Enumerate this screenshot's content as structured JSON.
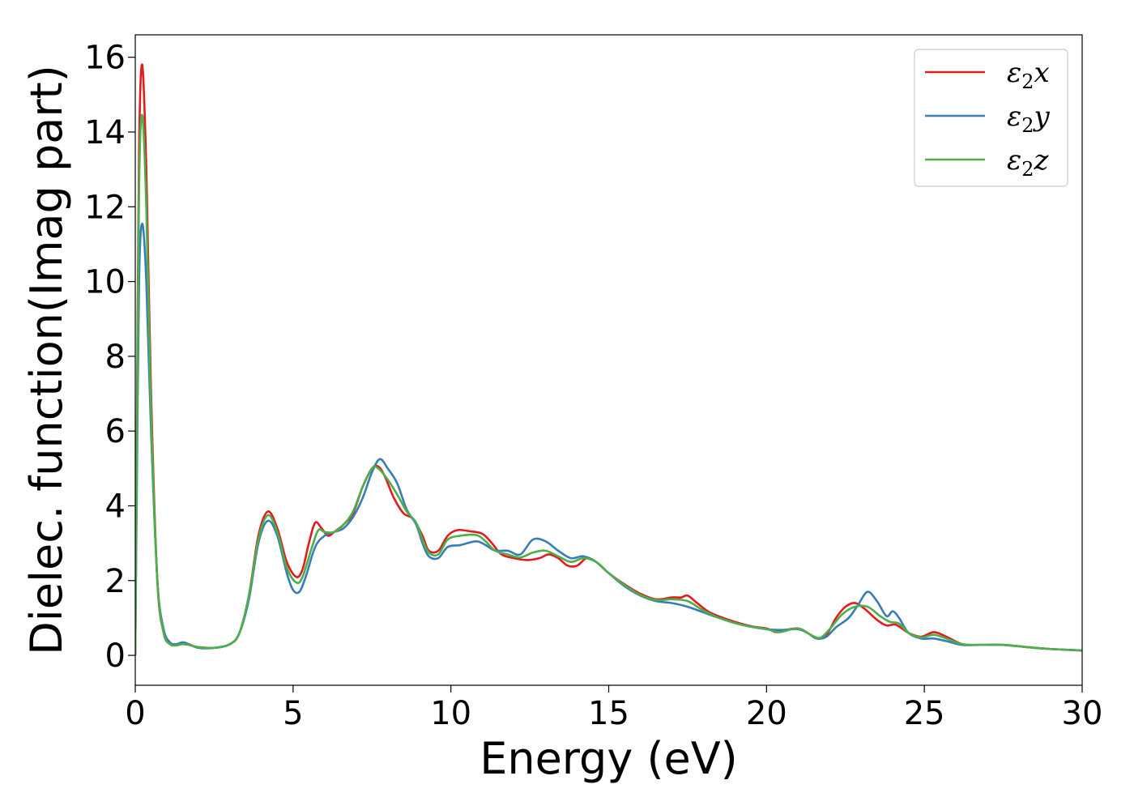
{
  "chart_data": {
    "type": "line",
    "title": "",
    "xlabel": "Energy (eV)",
    "ylabel": "Dielec. function(Imag part)",
    "xlim": [
      0,
      30
    ],
    "ylim": [
      -0.8,
      16.6
    ],
    "xticks": [
      0,
      5,
      10,
      15,
      20,
      25,
      30
    ],
    "yticks": [
      0,
      2,
      4,
      6,
      8,
      10,
      12,
      14,
      16
    ],
    "grid": false,
    "legend_position": "top-right",
    "series": [
      {
        "name": "ε₂x",
        "legend_main": "ε",
        "legend_sub": "2",
        "legend_suffix": "x",
        "color": "#e41a1c",
        "points": [
          [
            0,
            0
          ],
          [
            0.05,
            6.0
          ],
          [
            0.12,
            13.5
          ],
          [
            0.22,
            15.8
          ],
          [
            0.35,
            13.0
          ],
          [
            0.5,
            7.0
          ],
          [
            0.7,
            2.0
          ],
          [
            0.9,
            0.6
          ],
          [
            1.1,
            0.3
          ],
          [
            1.3,
            0.27
          ],
          [
            1.5,
            0.3
          ],
          [
            1.7,
            0.28
          ],
          [
            2.0,
            0.22
          ],
          [
            2.5,
            0.2
          ],
          [
            3.0,
            0.3
          ],
          [
            3.3,
            0.6
          ],
          [
            3.6,
            1.6
          ],
          [
            3.9,
            3.2
          ],
          [
            4.2,
            3.85
          ],
          [
            4.5,
            3.4
          ],
          [
            4.8,
            2.5
          ],
          [
            5.1,
            2.1
          ],
          [
            5.3,
            2.3
          ],
          [
            5.5,
            3.0
          ],
          [
            5.7,
            3.55
          ],
          [
            5.9,
            3.4
          ],
          [
            6.1,
            3.2
          ],
          [
            6.3,
            3.3
          ],
          [
            6.6,
            3.5
          ],
          [
            6.9,
            3.8
          ],
          [
            7.2,
            4.5
          ],
          [
            7.5,
            5.0
          ],
          [
            7.7,
            5.05
          ],
          [
            7.9,
            4.8
          ],
          [
            8.2,
            4.2
          ],
          [
            8.5,
            3.8
          ],
          [
            8.8,
            3.65
          ],
          [
            9.1,
            3.2
          ],
          [
            9.3,
            2.8
          ],
          [
            9.6,
            2.8
          ],
          [
            9.9,
            3.2
          ],
          [
            10.2,
            3.35
          ],
          [
            10.6,
            3.32
          ],
          [
            11.0,
            3.25
          ],
          [
            11.3,
            3.0
          ],
          [
            11.6,
            2.7
          ],
          [
            12.0,
            2.6
          ],
          [
            12.4,
            2.55
          ],
          [
            12.8,
            2.6
          ],
          [
            13.1,
            2.7
          ],
          [
            13.4,
            2.6
          ],
          [
            13.7,
            2.4
          ],
          [
            14.0,
            2.4
          ],
          [
            14.3,
            2.6
          ],
          [
            14.6,
            2.5
          ],
          [
            15.0,
            2.2
          ],
          [
            15.5,
            1.9
          ],
          [
            16.0,
            1.65
          ],
          [
            16.5,
            1.5
          ],
          [
            17.0,
            1.55
          ],
          [
            17.3,
            1.55
          ],
          [
            17.5,
            1.6
          ],
          [
            17.8,
            1.4
          ],
          [
            18.2,
            1.15
          ],
          [
            18.8,
            0.95
          ],
          [
            19.5,
            0.78
          ],
          [
            20.0,
            0.72
          ],
          [
            20.3,
            0.62
          ],
          [
            20.6,
            0.68
          ],
          [
            21.0,
            0.72
          ],
          [
            21.3,
            0.6
          ],
          [
            21.6,
            0.45
          ],
          [
            21.9,
            0.55
          ],
          [
            22.2,
            1.0
          ],
          [
            22.5,
            1.3
          ],
          [
            22.8,
            1.4
          ],
          [
            23.1,
            1.25
          ],
          [
            23.5,
            0.95
          ],
          [
            23.8,
            0.8
          ],
          [
            24.1,
            0.82
          ],
          [
            24.5,
            0.6
          ],
          [
            24.9,
            0.5
          ],
          [
            25.3,
            0.62
          ],
          [
            25.7,
            0.5
          ],
          [
            26.2,
            0.3
          ],
          [
            26.8,
            0.28
          ],
          [
            27.5,
            0.28
          ],
          [
            28.5,
            0.2
          ],
          [
            29.0,
            0.17
          ],
          [
            30,
            0.13
          ]
        ]
      },
      {
        "name": "ε₂y",
        "legend_main": "ε",
        "legend_sub": "2",
        "legend_suffix": "y",
        "color": "#377eb8",
        "points": [
          [
            0,
            0
          ],
          [
            0.05,
            4.5
          ],
          [
            0.12,
            10.0
          ],
          [
            0.22,
            11.55
          ],
          [
            0.35,
            10.0
          ],
          [
            0.5,
            6.0
          ],
          [
            0.7,
            2.0
          ],
          [
            0.9,
            0.7
          ],
          [
            1.1,
            0.35
          ],
          [
            1.3,
            0.3
          ],
          [
            1.5,
            0.35
          ],
          [
            1.7,
            0.3
          ],
          [
            2.0,
            0.2
          ],
          [
            2.5,
            0.2
          ],
          [
            3.0,
            0.3
          ],
          [
            3.3,
            0.6
          ],
          [
            3.6,
            1.5
          ],
          [
            3.9,
            3.0
          ],
          [
            4.2,
            3.6
          ],
          [
            4.5,
            3.2
          ],
          [
            4.8,
            2.2
          ],
          [
            5.0,
            1.75
          ],
          [
            5.2,
            1.7
          ],
          [
            5.4,
            2.1
          ],
          [
            5.7,
            2.9
          ],
          [
            6.0,
            3.2
          ],
          [
            6.3,
            3.3
          ],
          [
            6.6,
            3.4
          ],
          [
            6.9,
            3.7
          ],
          [
            7.2,
            4.2
          ],
          [
            7.5,
            4.9
          ],
          [
            7.75,
            5.25
          ],
          [
            8.0,
            5.0
          ],
          [
            8.3,
            4.6
          ],
          [
            8.6,
            3.9
          ],
          [
            8.9,
            3.5
          ],
          [
            9.1,
            3.0
          ],
          [
            9.3,
            2.65
          ],
          [
            9.6,
            2.6
          ],
          [
            9.9,
            2.9
          ],
          [
            10.3,
            2.95
          ],
          [
            10.8,
            3.05
          ],
          [
            11.1,
            2.95
          ],
          [
            11.4,
            2.8
          ],
          [
            11.8,
            2.8
          ],
          [
            12.2,
            2.7
          ],
          [
            12.6,
            3.1
          ],
          [
            13.0,
            3.05
          ],
          [
            13.4,
            2.8
          ],
          [
            13.8,
            2.6
          ],
          [
            14.2,
            2.65
          ],
          [
            14.6,
            2.5
          ],
          [
            15.0,
            2.2
          ],
          [
            15.5,
            1.85
          ],
          [
            16.0,
            1.6
          ],
          [
            16.5,
            1.45
          ],
          [
            17.0,
            1.4
          ],
          [
            17.5,
            1.3
          ],
          [
            18.0,
            1.15
          ],
          [
            18.5,
            1.0
          ],
          [
            19.2,
            0.82
          ],
          [
            20.0,
            0.7
          ],
          [
            20.5,
            0.68
          ],
          [
            21.0,
            0.7
          ],
          [
            21.3,
            0.6
          ],
          [
            21.6,
            0.45
          ],
          [
            21.9,
            0.5
          ],
          [
            22.2,
            0.75
          ],
          [
            22.6,
            1.0
          ],
          [
            22.9,
            1.35
          ],
          [
            23.2,
            1.7
          ],
          [
            23.5,
            1.45
          ],
          [
            23.8,
            1.05
          ],
          [
            24.0,
            1.18
          ],
          [
            24.2,
            1.0
          ],
          [
            24.5,
            0.6
          ],
          [
            24.9,
            0.45
          ],
          [
            25.3,
            0.45
          ],
          [
            25.7,
            0.38
          ],
          [
            26.2,
            0.28
          ],
          [
            26.8,
            0.28
          ],
          [
            27.5,
            0.28
          ],
          [
            28.5,
            0.2
          ],
          [
            29.0,
            0.17
          ],
          [
            30,
            0.13
          ]
        ]
      },
      {
        "name": "ε₂z",
        "legend_main": "ε",
        "legend_sub": "2",
        "legend_suffix": "z",
        "color": "#4daf4a",
        "points": [
          [
            0,
            0
          ],
          [
            0.05,
            5.5
          ],
          [
            0.12,
            12.5
          ],
          [
            0.22,
            14.45
          ],
          [
            0.35,
            12.0
          ],
          [
            0.5,
            6.5
          ],
          [
            0.7,
            2.0
          ],
          [
            0.9,
            0.6
          ],
          [
            1.1,
            0.3
          ],
          [
            1.3,
            0.27
          ],
          [
            1.5,
            0.3
          ],
          [
            1.7,
            0.28
          ],
          [
            2.0,
            0.22
          ],
          [
            2.5,
            0.2
          ],
          [
            3.0,
            0.3
          ],
          [
            3.3,
            0.6
          ],
          [
            3.6,
            1.6
          ],
          [
            3.9,
            3.1
          ],
          [
            4.2,
            3.75
          ],
          [
            4.5,
            3.3
          ],
          [
            4.8,
            2.35
          ],
          [
            5.1,
            1.95
          ],
          [
            5.3,
            2.1
          ],
          [
            5.6,
            2.9
          ],
          [
            5.8,
            3.35
          ],
          [
            6.0,
            3.3
          ],
          [
            6.3,
            3.3
          ],
          [
            6.6,
            3.5
          ],
          [
            6.9,
            3.85
          ],
          [
            7.2,
            4.5
          ],
          [
            7.5,
            5.0
          ],
          [
            7.7,
            5.0
          ],
          [
            8.0,
            4.7
          ],
          [
            8.3,
            4.3
          ],
          [
            8.6,
            3.85
          ],
          [
            8.9,
            3.55
          ],
          [
            9.1,
            3.1
          ],
          [
            9.3,
            2.75
          ],
          [
            9.6,
            2.7
          ],
          [
            9.9,
            3.1
          ],
          [
            10.3,
            3.2
          ],
          [
            10.8,
            3.22
          ],
          [
            11.1,
            3.05
          ],
          [
            11.4,
            2.8
          ],
          [
            11.8,
            2.7
          ],
          [
            12.2,
            2.62
          ],
          [
            12.6,
            2.75
          ],
          [
            13.0,
            2.8
          ],
          [
            13.4,
            2.65
          ],
          [
            13.8,
            2.5
          ],
          [
            14.2,
            2.6
          ],
          [
            14.6,
            2.5
          ],
          [
            15.0,
            2.2
          ],
          [
            15.5,
            1.88
          ],
          [
            16.0,
            1.62
          ],
          [
            16.5,
            1.48
          ],
          [
            17.0,
            1.5
          ],
          [
            17.5,
            1.45
          ],
          [
            18.0,
            1.2
          ],
          [
            18.5,
            1.0
          ],
          [
            19.2,
            0.82
          ],
          [
            20.0,
            0.7
          ],
          [
            20.4,
            0.62
          ],
          [
            20.8,
            0.7
          ],
          [
            21.1,
            0.7
          ],
          [
            21.4,
            0.55
          ],
          [
            21.7,
            0.47
          ],
          [
            22.0,
            0.7
          ],
          [
            22.4,
            1.1
          ],
          [
            22.8,
            1.3
          ],
          [
            23.2,
            1.3
          ],
          [
            23.6,
            1.05
          ],
          [
            23.9,
            0.9
          ],
          [
            24.2,
            0.85
          ],
          [
            24.5,
            0.6
          ],
          [
            24.9,
            0.48
          ],
          [
            25.3,
            0.55
          ],
          [
            25.7,
            0.45
          ],
          [
            26.2,
            0.3
          ],
          [
            26.8,
            0.28
          ],
          [
            27.5,
            0.28
          ],
          [
            28.5,
            0.2
          ],
          [
            29.0,
            0.17
          ],
          [
            30,
            0.13
          ]
        ]
      }
    ]
  }
}
